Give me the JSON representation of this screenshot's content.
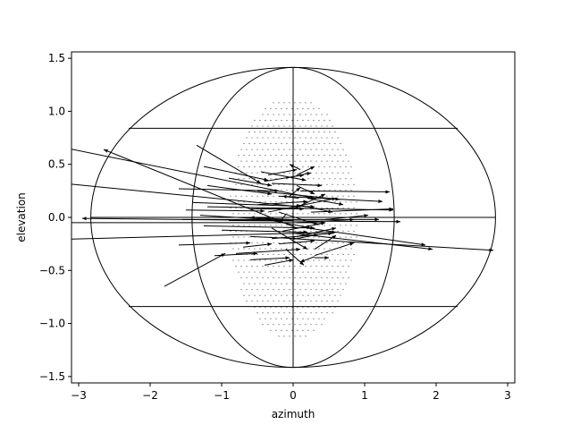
{
  "chart_data": {
    "type": "quiver",
    "title": "",
    "xlabel": "azimuth",
    "ylabel": "elevation",
    "xlim": [
      -3.1,
      3.1
    ],
    "ylim": [
      -1.56,
      1.56
    ],
    "xticks": [
      -3,
      -2,
      -1,
      0,
      1,
      2,
      3
    ],
    "xtick_labels": [
      "−3",
      "−2",
      "−1",
      "0",
      "1",
      "2",
      "3"
    ],
    "yticks": [
      -1.5,
      -1.0,
      -0.5,
      0.0,
      0.5,
      1.0,
      1.5
    ],
    "ytick_labels": [
      "−1.5",
      "−1.0",
      "−0.5",
      "0.0",
      "0.5",
      "1.0",
      "1.5"
    ],
    "grid": false,
    "outline": {
      "outer_ellipse": {
        "center": [
          0,
          0
        ],
        "semi_x": 2.83,
        "semi_y": 1.414
      },
      "inner_ellipse": {
        "center": [
          0,
          0
        ],
        "semi_x": 1.414,
        "semi_y": 1.414
      },
      "meridian_x": 0,
      "parallels": [
        {
          "y": 0.84,
          "x_range": [
            -2.3,
            2.3
          ]
        },
        {
          "y": 0.0,
          "x_range": [
            -2.83,
            2.83
          ]
        },
        {
          "y": -0.84,
          "x_range": [
            -2.3,
            2.3
          ]
        }
      ]
    },
    "point_region": {
      "center": [
        0,
        0
      ],
      "semi_x": 0.9,
      "semi_y": 1.15
    },
    "arrows": [
      [
        -1.35,
        0.68,
        -0.45,
        0.32
      ],
      [
        -1.25,
        0.48,
        -0.35,
        0.35
      ],
      [
        -0.45,
        0.43,
        0.18,
        0.35
      ],
      [
        -0.35,
        0.4,
        0.05,
        0.45
      ],
      [
        0.05,
        0.4,
        0.3,
        0.48
      ],
      [
        0.1,
        0.45,
        -0.05,
        0.5
      ],
      [
        -1.6,
        0.27,
        -0.2,
        0.25
      ],
      [
        -1.2,
        0.3,
        -0.3,
        0.22
      ],
      [
        -0.5,
        0.25,
        0.65,
        0.17
      ],
      [
        0.1,
        0.25,
        1.35,
        0.24
      ],
      [
        -0.2,
        0.2,
        1.25,
        0.15
      ],
      [
        0.2,
        0.18,
        0.7,
        0.12
      ],
      [
        -1.4,
        0.14,
        0.3,
        0.1
      ],
      [
        -1.5,
        0.07,
        -0.4,
        0.06
      ],
      [
        -1.2,
        0.1,
        1.4,
        0.07
      ],
      [
        -0.6,
        0.08,
        0.15,
        0.08
      ],
      [
        0.05,
        0.12,
        0.55,
        0.05
      ],
      [
        -1.55,
        -0.02,
        1.2,
        -0.02
      ],
      [
        -1.3,
        0.02,
        -0.3,
        -0.02
      ],
      [
        -0.9,
        -0.03,
        1.5,
        -0.04
      ],
      [
        -0.1,
        0.03,
        -0.2,
        -0.05
      ],
      [
        0.05,
        -0.05,
        0.85,
        -0.02
      ],
      [
        -1.25,
        -0.08,
        0.3,
        -0.1
      ],
      [
        -1.0,
        -0.12,
        0.2,
        -0.14
      ],
      [
        -1.6,
        -0.26,
        -0.6,
        -0.24
      ],
      [
        -0.7,
        -0.28,
        -0.3,
        -0.25
      ],
      [
        -0.3,
        -0.2,
        0.55,
        -0.15
      ],
      [
        -1.1,
        -0.36,
        -0.5,
        -0.34
      ],
      [
        -0.8,
        -0.34,
        0.1,
        -0.3
      ],
      [
        -0.6,
        -0.4,
        -0.05,
        -0.38
      ],
      [
        -0.4,
        -0.45,
        0.0,
        -0.4
      ],
      [
        0.3,
        -0.37,
        0.1,
        -0.42
      ],
      [
        0.3,
        -0.38,
        0.5,
        -0.38
      ],
      [
        0.3,
        -0.36,
        0.85,
        -0.24
      ],
      [
        0.3,
        -0.3,
        0.6,
        -0.17
      ],
      [
        0.05,
        -0.2,
        0.35,
        -0.16
      ],
      [
        -0.2,
        -0.25,
        0.3,
        -0.22
      ],
      [
        0.2,
        -0.1,
        1.85,
        -0.26
      ],
      [
        0.0,
        -0.15,
        1.95,
        -0.3
      ],
      [
        -0.9,
        0.37,
        -0.3,
        0.3
      ],
      [
        -0.4,
        0.34,
        0.15,
        0.4
      ],
      [
        -0.1,
        0.37,
        0.25,
        0.42
      ],
      [
        -0.3,
        0.32,
        0.4,
        0.3
      ],
      [
        0.05,
        0.3,
        0.3,
        0.22
      ],
      [
        -0.05,
        0.2,
        0.1,
        0.28
      ],
      [
        -0.5,
        0.12,
        0.2,
        0.15
      ],
      [
        -0.2,
        0.05,
        0.35,
        -0.07
      ],
      [
        -0.3,
        -0.03,
        0.25,
        -0.1
      ],
      [
        -0.3,
        -0.1,
        0.2,
        -0.3
      ],
      [
        -0.1,
        -0.3,
        0.15,
        -0.45
      ],
      [
        -1.8,
        -0.65,
        -0.95,
        -0.34
      ],
      [
        0.05,
        -0.18,
        0.6,
        -0.1
      ],
      [
        -0.15,
        -0.13,
        0.45,
        -0.05
      ],
      [
        -0.35,
        0.05,
        0.6,
        0.18
      ],
      [
        0.25,
        0.05,
        1.4,
        0.08
      ],
      [
        0.45,
        -0.02,
        1.05,
        0.02
      ],
      [
        0.0,
        0.08,
        0.45,
        0.22
      ],
      [
        -0.6,
        -0.18,
        0.05,
        -0.2
      ],
      [
        -0.05,
        -0.02,
        -0.6,
        0.0
      ],
      [
        0.08,
        0.18,
        -0.15,
        0.2
      ],
      [
        -3.3,
        0.67,
        0.3,
        0.18
      ],
      [
        -3.5,
        0.34,
        0.1,
        0.1
      ],
      [
        -3.4,
        -0.05,
        0.45,
        -0.05
      ],
      [
        -3.4,
        -0.21,
        0.6,
        -0.14
      ],
      [
        0.0,
        -0.03,
        -2.95,
        -0.01
      ],
      [
        0.0,
        -0.2,
        2.8,
        -0.31
      ],
      [
        0.05,
        -0.1,
        -2.65,
        0.64
      ]
    ]
  }
}
